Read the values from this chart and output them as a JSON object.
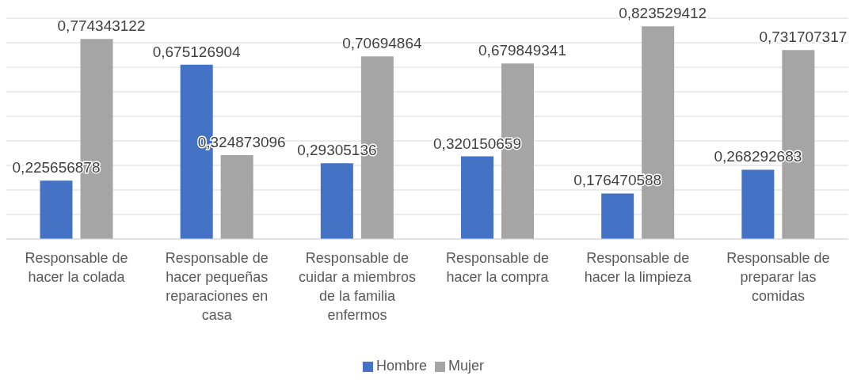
{
  "chart_data": {
    "type": "bar",
    "categories": [
      "Responsable de hacer la colada",
      "Responsable de hacer pequeñas reparaciones en casa",
      "Responsable de cuidar a miembros de la familia enfermos",
      "Responsable de hacer la compra",
      "Responsable de hacer la limpieza",
      "Responsable de preparar las comidas"
    ],
    "series": [
      {
        "name": "Hombre",
        "color": "#4472c4",
        "values": [
          0.225656878,
          0.675126904,
          0.29305136,
          0.320150659,
          0.176470588,
          0.268292683
        ],
        "value_labels": [
          "0,225656878",
          "0,675126904",
          "0,29305136",
          "0,320150659",
          "0,176470588",
          "0,268292683"
        ]
      },
      {
        "name": "Mujer",
        "color": "#a5a5a5",
        "values": [
          0.774343122,
          0.324873096,
          0.70694864,
          0.679849341,
          0.823529412,
          0.731707317
        ],
        "value_labels": [
          "0,774343122",
          "0,324873096",
          "0,70694864",
          "0,679849341",
          "0,823529412",
          "0,731707317"
        ]
      }
    ],
    "grid": "y",
    "legend": "bottom",
    "tick_labels": "x"
  }
}
